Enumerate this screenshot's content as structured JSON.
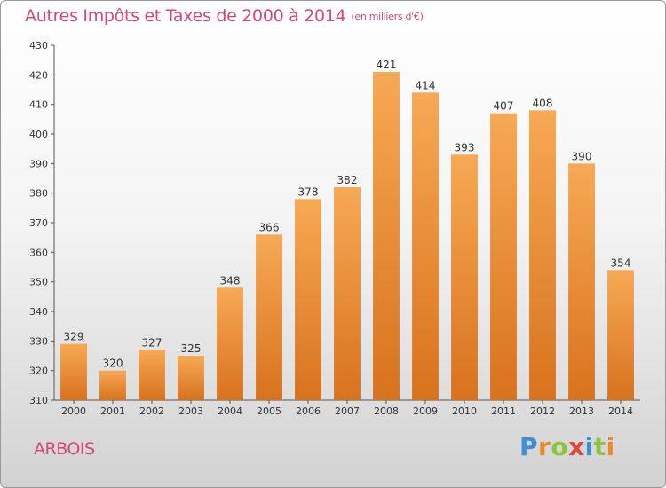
{
  "header": {
    "title": "Autres Impôts et Taxes de 2000 à 2014",
    "unit": "(en milliers d'€)"
  },
  "footer": {
    "commune": "ARBOIS",
    "logo_letters": [
      {
        "ch": "P",
        "color": "#3d8fd6"
      },
      {
        "ch": "r",
        "color": "#e8892e"
      },
      {
        "ch": "o",
        "color": "#8cc43f"
      },
      {
        "ch": "x",
        "color": "#e0473a"
      },
      {
        "ch": "i",
        "color": "#3d8fd6"
      },
      {
        "ch": "t",
        "color": "#8cc43f"
      },
      {
        "ch": "i",
        "color": "#e8892e"
      }
    ]
  },
  "colors": {
    "title": "#d8457a",
    "bar_light": "#f7a955",
    "bar_dark": "#d8721e",
    "axis": "#555555",
    "text": "#333333"
  },
  "chart_data": {
    "type": "bar",
    "title": "Autres Impôts et Taxes de 2000 à 2014",
    "ylabel": "",
    "xlabel": "",
    "categories": [
      "2000",
      "2001",
      "2002",
      "2003",
      "2004",
      "2005",
      "2006",
      "2007",
      "2008",
      "2009",
      "2010",
      "2011",
      "2012",
      "2013",
      "2014"
    ],
    "values": [
      329,
      320,
      327,
      325,
      348,
      366,
      378,
      382,
      421,
      414,
      393,
      407,
      408,
      390,
      354
    ],
    "ylim": [
      310,
      430
    ],
    "yticks": [
      310,
      320,
      330,
      340,
      350,
      360,
      370,
      380,
      390,
      400,
      410,
      420,
      430
    ],
    "grid": false,
    "data_labels": true
  }
}
